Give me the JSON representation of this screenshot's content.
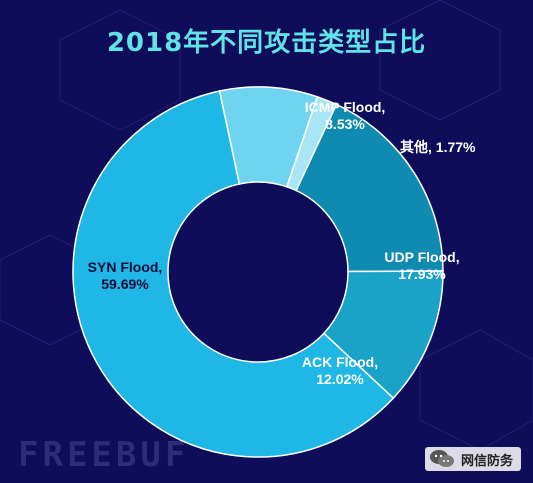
{
  "chart_data": {
    "type": "pie",
    "title": "2018年不同攻击类型占比",
    "donut": true,
    "categories": [
      "ICMP Flood",
      "其他",
      "UDP Flood",
      "ACK Flood",
      "SYN Flood"
    ],
    "values": [
      8.53,
      1.77,
      17.93,
      12.02,
      59.69
    ],
    "data_labels": [
      "ICMP Flood,\n8.53%",
      "其他, 1.77%",
      "UDP Flood,\n17.93%",
      "ACK Flood,\n12.02%",
      "SYN Flood,\n59.69%"
    ],
    "colors": [
      "#6fd4f0",
      "#a8e6f5",
      "#0f8ab0",
      "#1aa3c8",
      "#1fb8e6"
    ]
  },
  "footer": {
    "brand": "FREEBUF",
    "watermark": "网信防务",
    "watermark_icon": "wechat-icon"
  }
}
